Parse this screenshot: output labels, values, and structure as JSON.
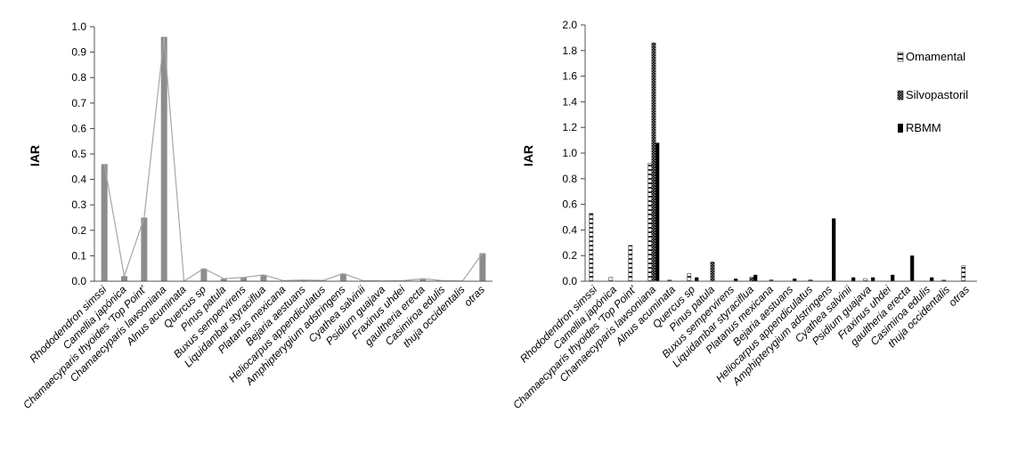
{
  "chart_data": [
    {
      "type": "bar",
      "title": "",
      "xlabel": "",
      "ylabel": "IAR",
      "ylim": [
        0,
        1.0
      ],
      "y_ticks": [
        "0.0",
        "0.1",
        "0.2",
        "0.3",
        "0.4",
        "0.5",
        "0.6",
        "0.7",
        "0.8",
        "0.9",
        "1.0"
      ],
      "grid": false,
      "overlay_line": true,
      "categories": [
        "Rhododendron simssi",
        "Camellia japónica",
        "Chamaecyparis thyoides 'Top Point'",
        "Chamaecyparis lawsoniana",
        "Alnus acuminata",
        "Quercus sp",
        "Pinus patula",
        "Buxus sempervirens",
        "Liquidambar styraciflua",
        "Platanus mexicana",
        "Bejaria aestuans",
        "Heliocarpus appendiculatus",
        "Amphipterygium adstringens",
        "Cyathea salvinii",
        "Psidium guajava",
        "Fraxinus uhdei",
        "gaultheria erecta",
        "Casimiroa edulis",
        "thuja occidentalis",
        "otras"
      ],
      "values": [
        0.46,
        0.02,
        0.25,
        0.96,
        0.0,
        0.05,
        0.01,
        0.015,
        0.025,
        0.002,
        0.005,
        0.003,
        0.03,
        0.002,
        0.001,
        0.002,
        0.01,
        0.002,
        0.001,
        0.11
      ]
    },
    {
      "type": "bar",
      "title": "",
      "xlabel": "",
      "ylabel": "IAR",
      "ylim": [
        0,
        2.0
      ],
      "y_ticks": [
        "0.0",
        "0.2",
        "0.4",
        "0.6",
        "0.8",
        "1.0",
        "1.2",
        "1.4",
        "1.6",
        "1.8",
        "2.0"
      ],
      "grid": false,
      "legend_position": "top-right",
      "categories": [
        "Rhododendron simssi",
        "Camellia japónica",
        "Chamaecyparis thyoides 'Top Point'",
        "Chamaecyparis lawsoniana",
        "Alnus acuminata",
        "Quercus sp",
        "Pinus patula",
        "Buxus sempervirens",
        "Liquidambar styraciflua",
        "Platanus mexicana",
        "Bejaria aestuans",
        "Heliocarpus appendiculatus",
        "Amphipterygium adstringens",
        "Cyathea salvinii",
        "Psidium guajava",
        "Fraxinus uhdei",
        "gaultheria erecta",
        "Casimiroa edulis",
        "thuja occidentalis",
        "otras"
      ],
      "series": [
        {
          "name": "Omamental",
          "pattern": "dashed-white",
          "values": [
            0.53,
            0.03,
            0.28,
            0.92,
            0.01,
            0.06,
            0.0,
            0.0,
            0.0,
            0.0,
            0.0,
            0.0,
            0.0,
            0.0,
            0.02,
            0.0,
            0.0,
            0.0,
            0.01,
            0.12
          ]
        },
        {
          "name": "Silvopastoril",
          "pattern": "dense-dotted",
          "values": [
            0.0,
            0.0,
            0.0,
            1.86,
            0.0,
            0.0,
            0.15,
            0.0,
            0.03,
            0.01,
            0.0,
            0.01,
            0.0,
            0.0,
            0.0,
            0.0,
            0.0,
            0.0,
            0.0,
            0.0
          ]
        },
        {
          "name": "RBMM",
          "pattern": "solid-black",
          "values": [
            0.0,
            0.0,
            0.0,
            1.08,
            0.0,
            0.03,
            0.0,
            0.02,
            0.05,
            0.0,
            0.02,
            0.0,
            0.49,
            0.03,
            0.03,
            0.05,
            0.2,
            0.03,
            0.0,
            0.0
          ]
        }
      ]
    }
  ]
}
